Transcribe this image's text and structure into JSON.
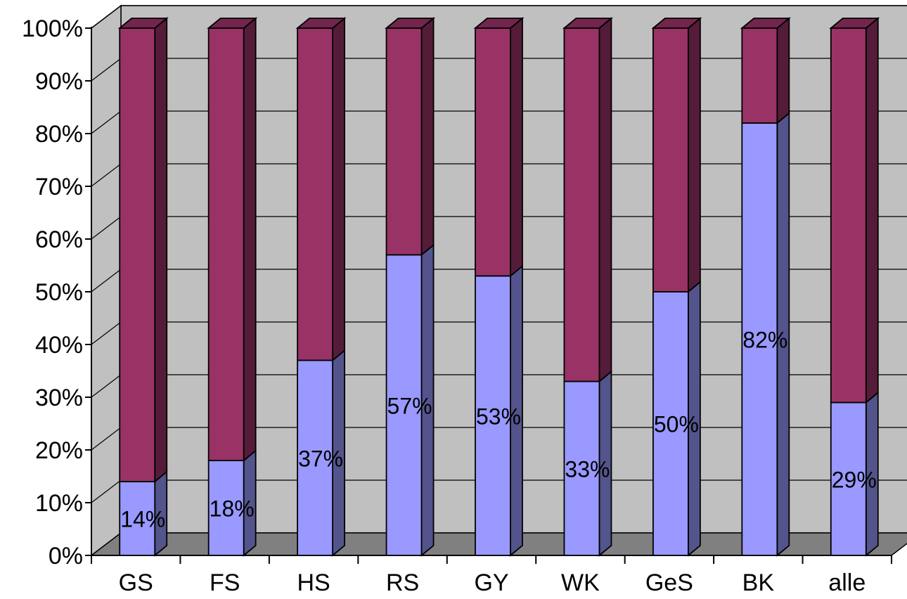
{
  "chart_data": {
    "type": "bar",
    "stacked": true,
    "percent_stacked": true,
    "three_d": true,
    "categories": [
      "GS",
      "FS",
      "HS",
      "RS",
      "GY",
      "WK",
      "GeS",
      "BK",
      "alle"
    ],
    "series": [
      {
        "values": [
          14,
          18,
          37,
          57,
          53,
          33,
          50,
          82,
          29
        ],
        "color": "#9999ff"
      },
      {
        "values": [
          86,
          82,
          63,
          43,
          47,
          67,
          50,
          18,
          71
        ],
        "color": "#993366"
      }
    ],
    "data_labels": [
      "14%",
      "18%",
      "37%",
      "57%",
      "53%",
      "33%",
      "50%",
      "82%",
      "29%"
    ],
    "y_ticks": [
      "0%",
      "10%",
      "20%",
      "30%",
      "40%",
      "50%",
      "60%",
      "70%",
      "80%",
      "90%",
      "100%"
    ],
    "ylim": [
      0,
      100
    ],
    "grid": true,
    "legend": "none",
    "colors": {
      "wall": "#c0c0c0",
      "floor": "#808080",
      "gridline": "#000000"
    }
  }
}
